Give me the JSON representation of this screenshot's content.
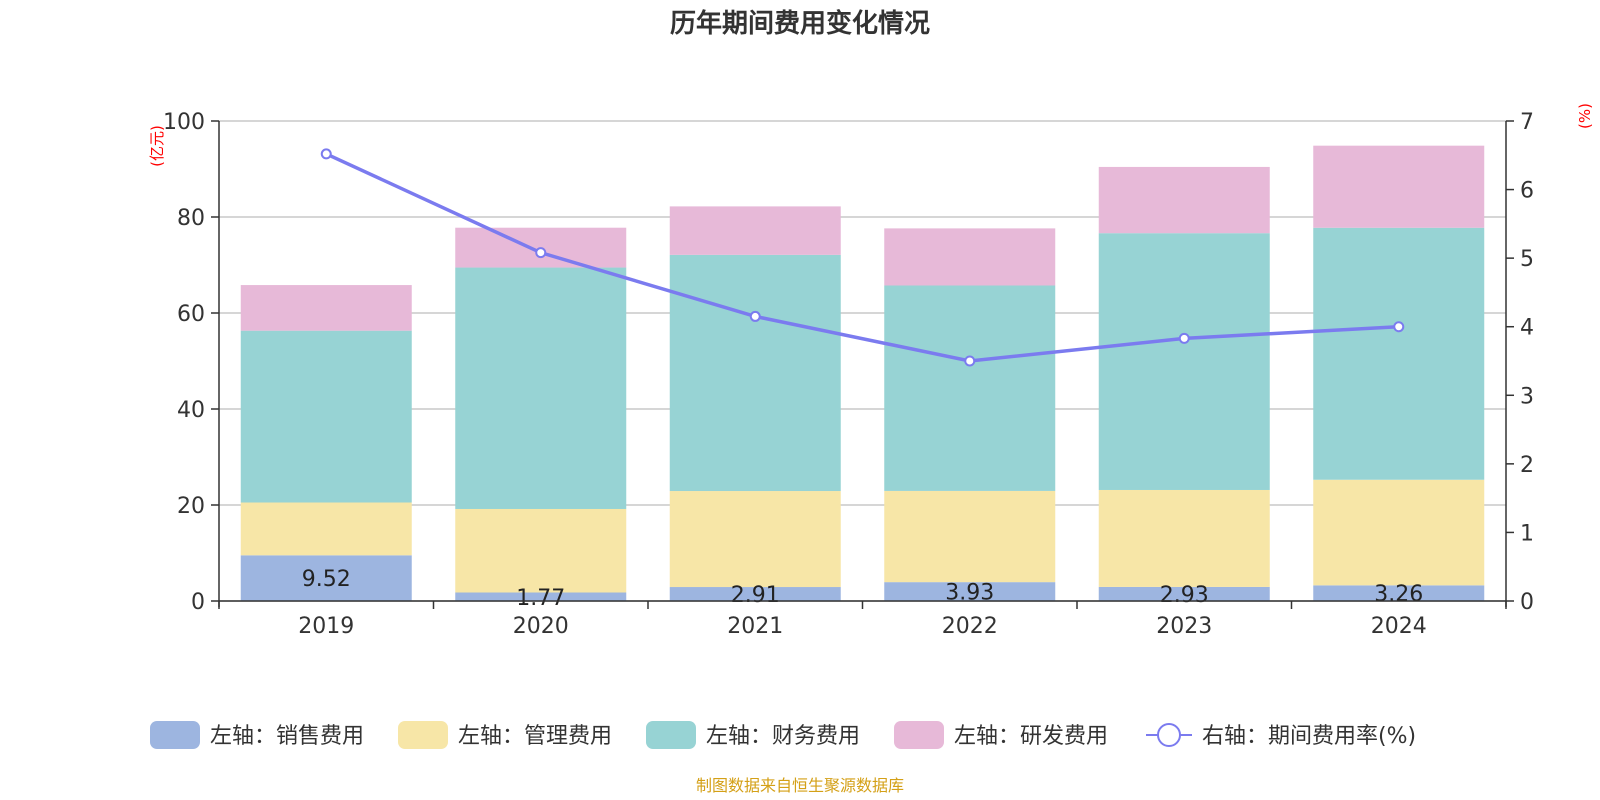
{
  "chart_data": {
    "type": "bar",
    "stacked": true,
    "title": "历年期间费用变化情况",
    "categories": [
      "2019",
      "2020",
      "2021",
      "2022",
      "2023",
      "2024"
    ],
    "left_axis": {
      "unit": "(亿元)",
      "ylim": [
        0,
        100
      ],
      "ticks": [
        0,
        20,
        40,
        60,
        80,
        100
      ]
    },
    "right_axis": {
      "unit": "(%)",
      "ylim": [
        0,
        7
      ],
      "ticks": [
        0,
        1,
        2,
        3,
        4,
        5,
        6,
        7
      ]
    },
    "series": [
      {
        "name": "左轴：销售费用",
        "kind": "bar",
        "axis": "left",
        "color": "#9db5e0",
        "values": [
          9.52,
          1.77,
          2.91,
          3.93,
          2.93,
          3.26
        ],
        "labels": [
          "9.52",
          "1.77",
          "2.91",
          "3.93",
          "2.93",
          "3.26"
        ]
      },
      {
        "name": "左轴：管理费用",
        "kind": "bar",
        "axis": "left",
        "color": "#f7e6a7",
        "values": [
          11.0,
          17.4,
          20.0,
          19.0,
          20.2,
          22.0
        ]
      },
      {
        "name": "左轴：财务费用",
        "kind": "bar",
        "axis": "left",
        "color": "#97d3d4",
        "values": [
          35.8,
          50.3,
          49.2,
          42.8,
          53.5,
          52.5
        ]
      },
      {
        "name": "左轴：研发费用",
        "kind": "bar",
        "axis": "left",
        "color": "#e7b9d8",
        "values": [
          9.5,
          8.3,
          10.1,
          11.9,
          13.8,
          17.1
        ]
      },
      {
        "name": "右轴：期间费用率(%)",
        "kind": "line",
        "axis": "right",
        "color": "#7b7bef",
        "values": [
          6.52,
          5.08,
          4.15,
          3.5,
          3.83,
          4.0
        ]
      }
    ],
    "grid": true,
    "legend": "bottom",
    "source": "制图数据来自恒生聚源数据库"
  }
}
